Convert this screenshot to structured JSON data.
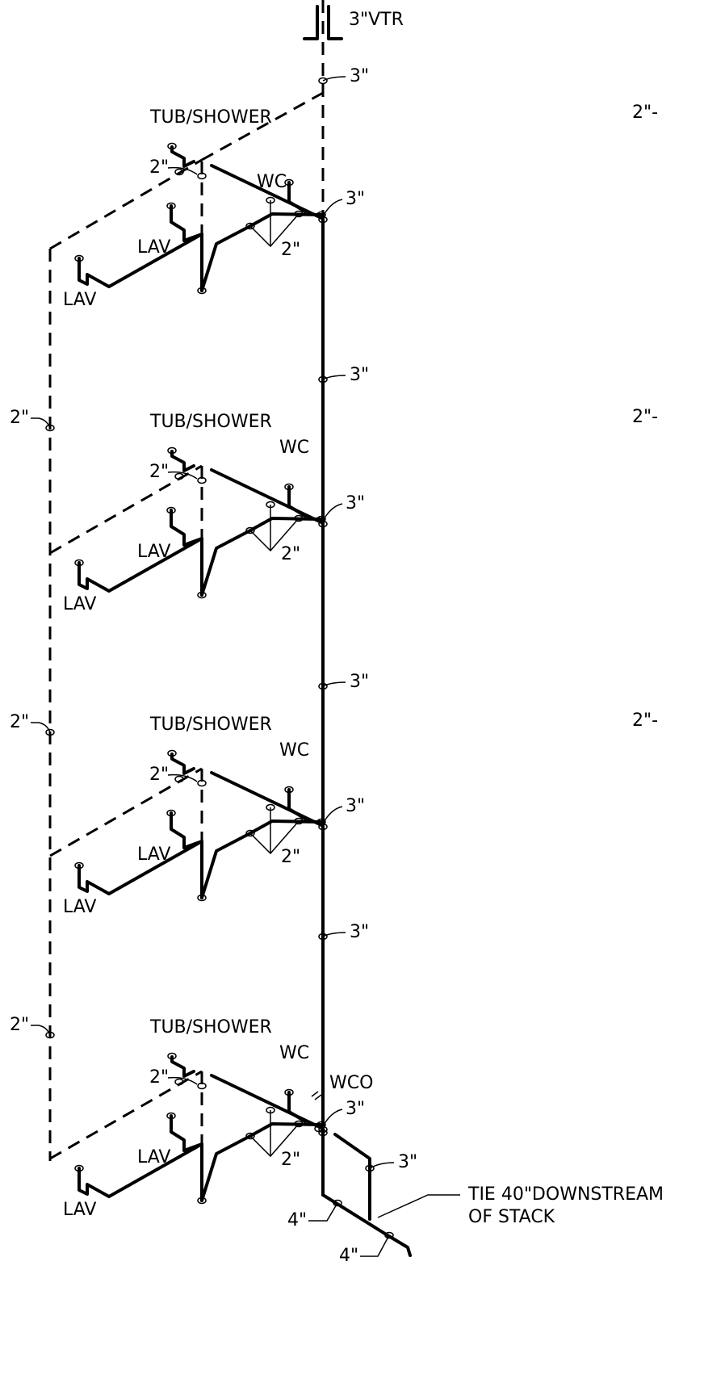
{
  "vtr_label": "3\"VTR",
  "stack_labels": [
    "3\"",
    "3\"",
    "3\"",
    "3\""
  ],
  "floors": [
    {
      "tub_shower": "TUB/SHOWER",
      "wc": "WC",
      "lav_1": "LAV",
      "lav_2": "LAV",
      "tub_size": "2\"",
      "wc_vent_size": "2\"",
      "stack_size": "3\""
    },
    {
      "tub_shower": "TUB/SHOWER",
      "wc": "WC",
      "lav_1": "LAV",
      "lav_2": "LAV",
      "tub_size": "2\"",
      "wc_vent_size": "2\"",
      "stack_size": "3\""
    },
    {
      "tub_shower": "TUB/SHOWER",
      "wc": "WC",
      "lav_1": "LAV",
      "lav_2": "LAV",
      "tub_size": "2\"",
      "wc_vent_size": "2\"",
      "stack_size": "3\""
    },
    {
      "tub_shower": "TUB/SHOWER",
      "wc": "WC",
      "lav_1": "LAV",
      "lav_2": "LAV",
      "tub_size": "2\"",
      "wc_vent_size": "2\"",
      "stack_size": "3\""
    }
  ],
  "vent_stack_labels": [
    "2\"",
    "2\"",
    "2\""
  ],
  "right_labels": [
    "2\"-",
    "2\"-",
    "2\"-"
  ],
  "wco": "WCO",
  "building_drain": {
    "size": "3\"",
    "note_line1": "TIE 40\"DOWNSTREAM",
    "note_line2": "OF STACK"
  },
  "house_drain_labels": [
    "4\"",
    "4\""
  ]
}
